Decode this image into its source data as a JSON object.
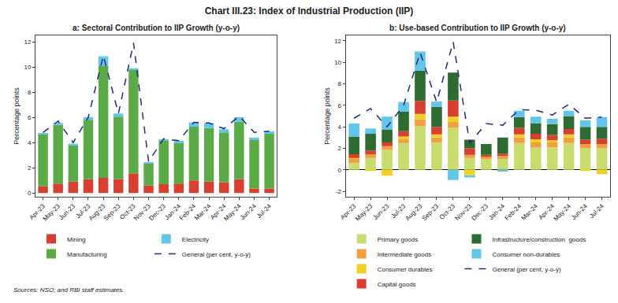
{
  "title": "Chart III.23: Index of Industrial Production (IIP)",
  "annotations": [
    "Sources: NSO; and RBI staff estimates."
  ],
  "chart_data": [
    {
      "type": "bar",
      "title": "a: Sectoral Contribution to IIP Growth (y-o-y)",
      "ylabel": "Percentage points",
      "stacked": true,
      "grid": false,
      "categories": [
        "Apr-23",
        "May-23",
        "Jun-23",
        "Jul-23",
        "Aug-23",
        "Sep-23",
        "Oct-23",
        "Nov-23",
        "Dec-23",
        "Jan-24",
        "Feb-24",
        "Mar-24",
        "Apr-24",
        "May-24",
        "Jun-24",
        "Jul-24"
      ],
      "ylim": [
        -0.3,
        12.5
      ],
      "yticks": [
        0,
        2,
        4,
        6,
        8,
        10,
        12
      ],
      "series": [
        {
          "name": "Mining",
          "color": "#d93f30",
          "values": [
            0.55,
            0.75,
            0.9,
            1.1,
            1.2,
            1.1,
            1.55,
            0.6,
            0.7,
            0.75,
            1.0,
            0.9,
            0.85,
            1.1,
            0.35,
            0.35
          ]
        },
        {
          "name": "Manufacturing",
          "color": "#5aaa46",
          "values": [
            4.1,
            4.65,
            2.9,
            4.7,
            8.9,
            4.95,
            8.2,
            1.75,
            3.45,
            3.2,
            4.25,
            4.25,
            3.95,
            4.55,
            3.85,
            4.35
          ]
        },
        {
          "name": "Electricity",
          "color": "#62c6ea",
          "values": [
            0.1,
            0.15,
            0.1,
            0.2,
            0.75,
            0.25,
            0.15,
            0.05,
            0.1,
            0.2,
            0.35,
            0.4,
            0.25,
            0.35,
            0.2,
            0.2
          ]
        },
        {
          "name": "General (per cent, y-o-y)",
          "type": "line",
          "line_style": "dashed",
          "color": "#1f2d7a",
          "values": [
            4.8,
            5.7,
            4.0,
            6.0,
            10.9,
            6.3,
            11.9,
            2.5,
            4.3,
            4.15,
            5.6,
            5.55,
            5.1,
            6.1,
            4.8,
            4.9
          ]
        }
      ]
    },
    {
      "type": "bar",
      "title": "b: Use-based Contribution to IIP Growth (y-o-y)",
      "ylabel": "Percentage points",
      "stacked": true,
      "grid": false,
      "categories": [
        "Apr-23",
        "May-23",
        "Jun-23",
        "Jul-23",
        "Aug-23",
        "Sep-23",
        "Oct-23",
        "Nov-23",
        "Dec-23",
        "Jan-24",
        "Feb-24",
        "Mar-24",
        "Apr-24",
        "May-24",
        "Jun-24",
        "Jul-24"
      ],
      "ylim": [
        -2.5,
        12.5
      ],
      "yticks": [
        -2,
        0,
        2,
        4,
        6,
        8,
        10,
        12
      ],
      "series": [
        {
          "name": "Primary goods",
          "color": "#c8dd6e",
          "values": [
            0.65,
            1.1,
            1.85,
            2.5,
            4.05,
            2.55,
            3.9,
            1.1,
            1.0,
            1.0,
            2.5,
            2.1,
            2.1,
            2.5,
            2.0,
            2.0
          ]
        },
        {
          "name": "Intermediate goods",
          "color": "#f0a040",
          "values": [
            0.4,
            0.35,
            0.35,
            0.35,
            0.65,
            0.45,
            0.55,
            0.3,
            0.3,
            0.3,
            0.5,
            0.45,
            0.45,
            0.5,
            0.4,
            0.4
          ]
        },
        {
          "name": "Consumer durables",
          "color": "#f0d020",
          "values": [
            0.05,
            -0.1,
            -0.55,
            0.25,
            0.5,
            0.3,
            0.5,
            -0.5,
            0.0,
            0.0,
            0.3,
            0.3,
            0.2,
            0.3,
            -0.1,
            -0.4
          ]
        },
        {
          "name": "Capital goods",
          "color": "#d93f30",
          "values": [
            0.35,
            0.35,
            0.35,
            0.5,
            1.2,
            0.7,
            1.5,
            0.6,
            0.1,
            0.2,
            0.6,
            0.5,
            0.5,
            0.5,
            0.4,
            0.5
          ]
        },
        {
          "name": "Infrastructure/construction  goods",
          "color": "#2d6b30",
          "values": [
            1.65,
            1.55,
            1.2,
            1.8,
            2.8,
            1.85,
            2.6,
            0.8,
            1.0,
            1.5,
            1.0,
            1.0,
            1.0,
            1.2,
            1.2,
            1.1
          ]
        },
        {
          "name": "Consumer non-durables",
          "color": "#62c6ea",
          "values": [
            1.2,
            0.5,
            1.2,
            0.9,
            1.8,
            0.5,
            -0.95,
            -0.2,
            0.0,
            -0.15,
            0.6,
            0.6,
            0.5,
            0.5,
            0.6,
            0.9
          ]
        },
        {
          "name": "General (per cent, y-o-y)",
          "type": "line",
          "line_style": "dashed",
          "color": "#1f2d7a",
          "values": [
            4.8,
            5.7,
            4.0,
            6.0,
            10.9,
            6.3,
            11.9,
            2.5,
            4.3,
            4.15,
            5.6,
            5.55,
            5.1,
            6.1,
            4.8,
            4.9
          ]
        }
      ]
    }
  ]
}
